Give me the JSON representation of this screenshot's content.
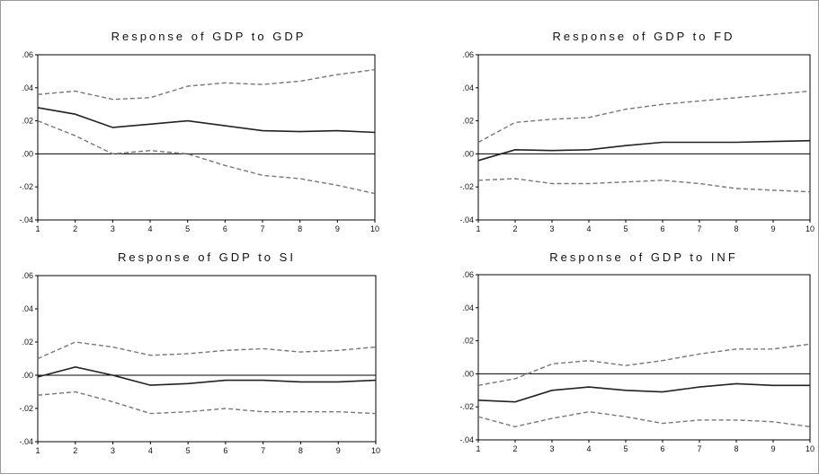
{
  "chart_data": [
    {
      "type": "line",
      "title": "Response of GDP to GDP",
      "x": [
        1,
        2,
        3,
        4,
        5,
        6,
        7,
        8,
        9,
        10
      ],
      "ylim": [
        -0.04,
        0.06
      ],
      "yticks": [
        ".06",
        ".04",
        ".02",
        ".00",
        "-.02",
        "-.04"
      ],
      "xticks": [
        "1",
        "2",
        "3",
        "4",
        "5",
        "6",
        "7",
        "8",
        "9",
        "10"
      ],
      "series": [
        {
          "role": "response",
          "style": "solid",
          "values": [
            0.028,
            0.024,
            0.016,
            0.018,
            0.02,
            0.017,
            0.014,
            0.0135,
            0.014,
            0.013
          ]
        },
        {
          "role": "upper band",
          "style": "dashed",
          "values": [
            0.036,
            0.038,
            0.033,
            0.034,
            0.041,
            0.043,
            0.042,
            0.044,
            0.048,
            0.051
          ]
        },
        {
          "role": "lower band",
          "style": "dashed",
          "values": [
            0.02,
            0.011,
            0.0,
            0.002,
            0.0,
            -0.007,
            -0.013,
            -0.015,
            -0.019,
            -0.024
          ]
        }
      ]
    },
    {
      "type": "line",
      "title": "Response of GDP to FD",
      "x": [
        1,
        2,
        3,
        4,
        5,
        6,
        7,
        8,
        9,
        10
      ],
      "ylim": [
        -0.04,
        0.06
      ],
      "yticks": [
        ".06",
        ".04",
        ".02",
        ".00",
        "-.02",
        "-.04"
      ],
      "xticks": [
        "1",
        "2",
        "3",
        "4",
        "5",
        "6",
        "7",
        "8",
        "9",
        "10"
      ],
      "series": [
        {
          "role": "response",
          "style": "solid",
          "values": [
            -0.004,
            0.0025,
            0.002,
            0.0025,
            0.005,
            0.007,
            0.007,
            0.007,
            0.0075,
            0.008
          ]
        },
        {
          "role": "upper band",
          "style": "dashed",
          "values": [
            0.007,
            0.019,
            0.021,
            0.022,
            0.027,
            0.03,
            0.032,
            0.034,
            0.036,
            0.038
          ]
        },
        {
          "role": "lower band",
          "style": "dashed",
          "values": [
            -0.016,
            -0.015,
            -0.018,
            -0.018,
            -0.017,
            -0.016,
            -0.018,
            -0.021,
            -0.022,
            -0.023
          ]
        }
      ]
    },
    {
      "type": "line",
      "title": "Response of GDP to SI",
      "x": [
        1,
        2,
        3,
        4,
        5,
        6,
        7,
        8,
        9,
        10
      ],
      "ylim": [
        -0.04,
        0.06
      ],
      "yticks": [
        ".06",
        ".04",
        ".02",
        ".00",
        "-.02",
        "-.04"
      ],
      "xticks": [
        "1",
        "2",
        "3",
        "4",
        "5",
        "6",
        "7",
        "8",
        "9",
        "10"
      ],
      "series": [
        {
          "role": "response",
          "style": "solid",
          "values": [
            -0.001,
            0.005,
            0.0,
            -0.006,
            -0.005,
            -0.003,
            -0.003,
            -0.004,
            -0.004,
            -0.003
          ]
        },
        {
          "role": "upper band",
          "style": "dashed",
          "values": [
            0.01,
            0.02,
            0.017,
            0.012,
            0.013,
            0.015,
            0.016,
            0.014,
            0.015,
            0.017
          ]
        },
        {
          "role": "lower band",
          "style": "dashed",
          "values": [
            -0.012,
            -0.01,
            -0.016,
            -0.023,
            -0.022,
            -0.02,
            -0.022,
            -0.022,
            -0.022,
            -0.023
          ]
        }
      ]
    },
    {
      "type": "line",
      "title": "Response of GDP to INF",
      "x": [
        1,
        2,
        3,
        4,
        5,
        6,
        7,
        8,
        9,
        10
      ],
      "ylim": [
        -0.04,
        0.06
      ],
      "yticks": [
        ".06",
        ".04",
        ".02",
        ".00",
        "-.02",
        "-.04"
      ],
      "xticks": [
        "1",
        "2",
        "3",
        "4",
        "5",
        "6",
        "7",
        "8",
        "9",
        "10"
      ],
      "series": [
        {
          "role": "response",
          "style": "solid",
          "values": [
            -0.016,
            -0.017,
            -0.01,
            -0.008,
            -0.01,
            -0.011,
            -0.008,
            -0.006,
            -0.007,
            -0.007
          ]
        },
        {
          "role": "upper band",
          "style": "dashed",
          "values": [
            -0.007,
            -0.003,
            0.006,
            0.008,
            0.005,
            0.008,
            0.012,
            0.015,
            0.015,
            0.018
          ]
        },
        {
          "role": "lower band",
          "style": "dashed",
          "values": [
            -0.026,
            -0.032,
            -0.027,
            -0.023,
            -0.026,
            -0.03,
            -0.028,
            -0.028,
            -0.029,
            -0.032
          ]
        }
      ]
    }
  ],
  "style": {
    "response_color": "#222222",
    "band_color": "#777777",
    "zero_line_color": "#000000"
  }
}
